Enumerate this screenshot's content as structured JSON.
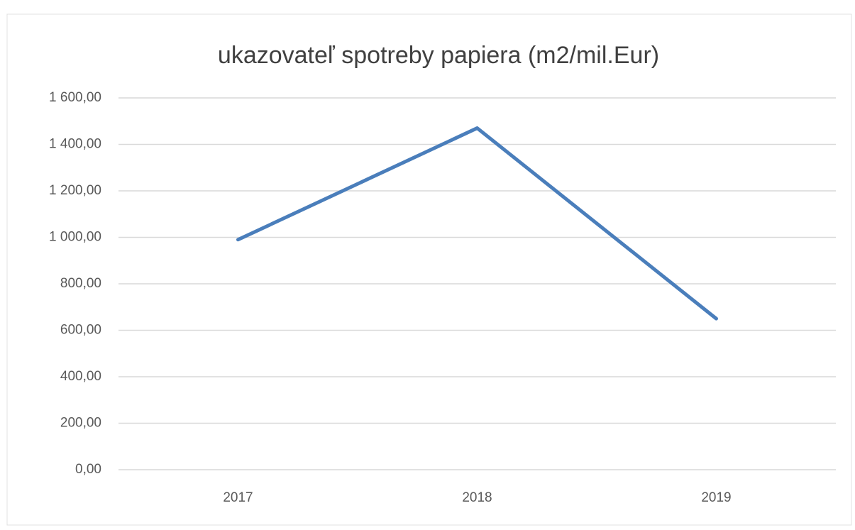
{
  "chart_data": {
    "type": "line",
    "title": "ukazovateľ spotreby papiera (m2/mil.Eur)",
    "categories": [
      "2017",
      "2018",
      "2019"
    ],
    "series": [
      {
        "name": "ukazovateľ spotreby papiera (m2/mil.Eur)",
        "color": "#4a7ebb",
        "values": [
          990,
          1470,
          650
        ]
      }
    ],
    "ylim": [
      0,
      1600
    ],
    "yticks": [
      {
        "value": 0,
        "label": "0,00"
      },
      {
        "value": 200,
        "label": "200,00"
      },
      {
        "value": 400,
        "label": "400,00"
      },
      {
        "value": 600,
        "label": "600,00"
      },
      {
        "value": 800,
        "label": "800,00"
      },
      {
        "value": 1000,
        "label": "1 000,00"
      },
      {
        "value": 1200,
        "label": "1 200,00"
      },
      {
        "value": 1400,
        "label": "1 400,00"
      },
      {
        "value": 1600,
        "label": "1 600,00"
      }
    ],
    "grid": true
  }
}
